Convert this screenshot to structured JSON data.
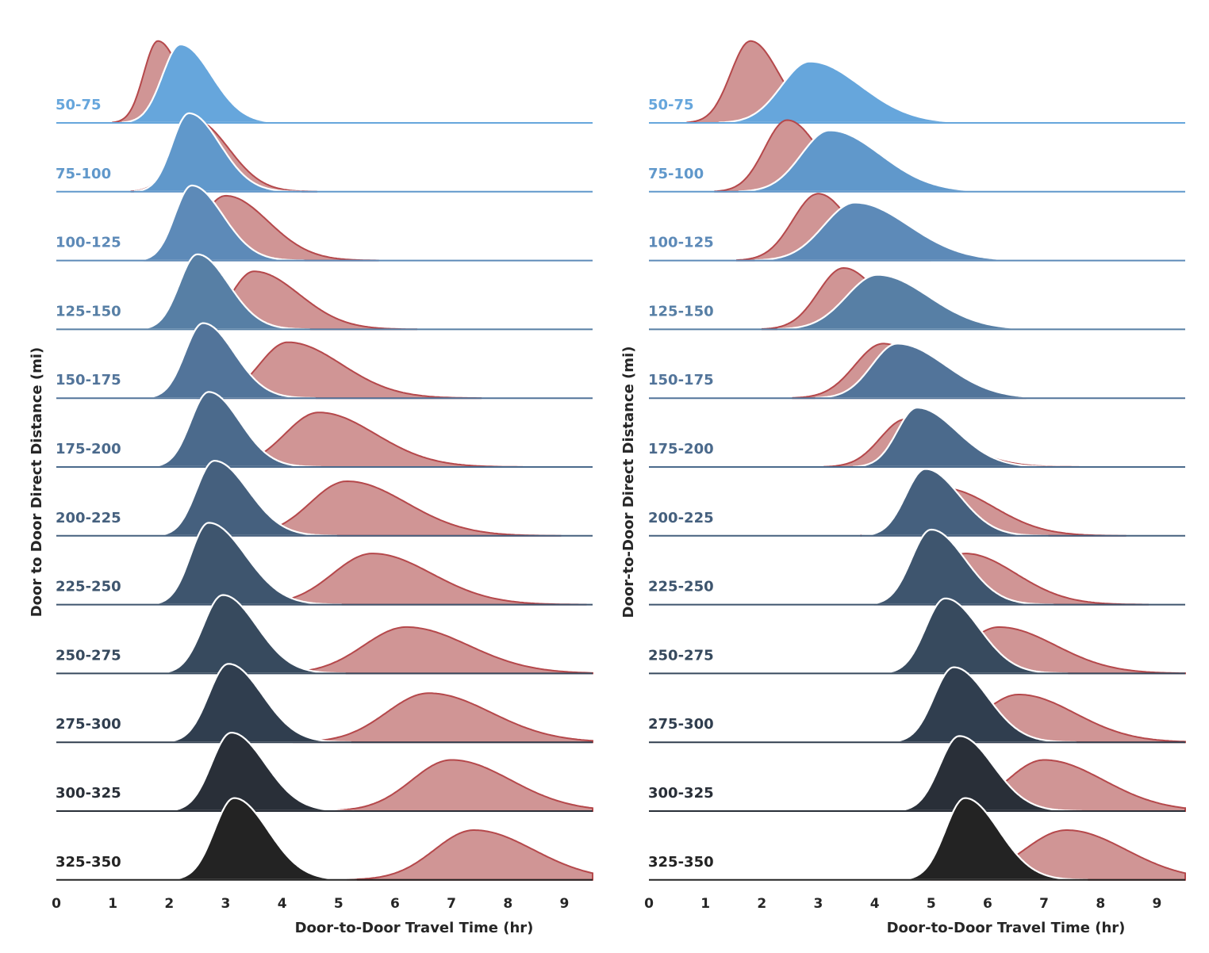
{
  "chart_data": [
    {
      "type": "ridgeline",
      "xlabel": "Door-to-Door Travel Time (hr)",
      "ylabel": "Door to Door Direct Distance (mi)",
      "xlim": [
        0,
        9.5
      ],
      "xticks": [
        "0",
        "1",
        "2",
        "3",
        "4",
        "5",
        "6",
        "7",
        "8",
        "9"
      ],
      "rows": [
        {
          "label": "50-75",
          "blue": {
            "peak": 2.2,
            "left": 0.32,
            "right": 0.55,
            "h": 1.15
          },
          "red": {
            "peak": 1.8,
            "left": 0.25,
            "right": 0.4,
            "h": 1.2
          }
        },
        {
          "label": "75-100",
          "blue": {
            "peak": 2.35,
            "left": 0.3,
            "right": 0.55,
            "h": 1.15
          },
          "red": {
            "peak": 2.45,
            "left": 0.35,
            "right": 0.6,
            "h": 1.05
          }
        },
        {
          "label": "100-125",
          "blue": {
            "peak": 2.4,
            "left": 0.3,
            "right": 0.55,
            "h": 1.1
          },
          "red": {
            "peak": 3.0,
            "left": 0.45,
            "right": 0.75,
            "h": 0.95
          }
        },
        {
          "label": "125-150",
          "blue": {
            "peak": 2.5,
            "left": 0.32,
            "right": 0.55,
            "h": 1.1
          },
          "red": {
            "peak": 3.5,
            "left": 0.4,
            "right": 0.8,
            "h": 0.85
          }
        },
        {
          "label": "150-175",
          "blue": {
            "peak": 2.6,
            "left": 0.32,
            "right": 0.55,
            "h": 1.1
          },
          "red": {
            "peak": 4.1,
            "left": 0.5,
            "right": 0.95,
            "h": 0.82
          }
        },
        {
          "label": "175-200",
          "blue": {
            "peak": 2.7,
            "left": 0.32,
            "right": 0.55,
            "h": 1.1
          },
          "red": {
            "peak": 4.65,
            "left": 0.6,
            "right": 1.0,
            "h": 0.8
          }
        },
        {
          "label": "200-225",
          "blue": {
            "peak": 2.8,
            "left": 0.32,
            "right": 0.6,
            "h": 1.1
          },
          "red": {
            "peak": 5.15,
            "left": 0.65,
            "right": 1.05,
            "h": 0.8
          }
        },
        {
          "label": "225-250",
          "blue": {
            "peak": 2.7,
            "left": 0.32,
            "right": 0.65,
            "h": 1.2
          },
          "red": {
            "peak": 5.6,
            "left": 0.7,
            "right": 1.05,
            "h": 0.75
          }
        },
        {
          "label": "250-275",
          "blue": {
            "peak": 2.95,
            "left": 0.35,
            "right": 0.6,
            "h": 1.15
          },
          "red": {
            "peak": 6.2,
            "left": 0.75,
            "right": 1.1,
            "h": 0.68
          }
        },
        {
          "label": "275-300",
          "blue": {
            "peak": 3.05,
            "left": 0.35,
            "right": 0.6,
            "h": 1.15
          },
          "red": {
            "peak": 6.6,
            "left": 0.75,
            "right": 1.1,
            "h": 0.72
          }
        },
        {
          "label": "300-325",
          "blue": {
            "peak": 3.1,
            "left": 0.35,
            "right": 0.6,
            "h": 1.15
          },
          "red": {
            "peak": 7.0,
            "left": 0.7,
            "right": 1.05,
            "h": 0.75
          }
        },
        {
          "label": "325-350",
          "blue": {
            "peak": 3.15,
            "left": 0.35,
            "right": 0.6,
            "h": 1.2
          },
          "red": {
            "peak": 7.4,
            "left": 0.7,
            "right": 1.05,
            "h": 0.73
          }
        }
      ]
    },
    {
      "type": "ridgeline",
      "xlabel": "Door-to-Door Travel Time (hr)",
      "ylabel": "Door-to-Door Direct Distance (mi)",
      "xlim": [
        0,
        9.5
      ],
      "xticks": [
        "0",
        "1",
        "2",
        "3",
        "4",
        "5",
        "6",
        "7",
        "8",
        "9"
      ],
      "rows": [
        {
          "label": "50-75",
          "blue": {
            "peak": 2.85,
            "left": 0.5,
            "right": 0.9,
            "h": 0.9
          },
          "red": {
            "peak": 1.8,
            "left": 0.35,
            "right": 0.5,
            "h": 1.2
          }
        },
        {
          "label": "75-100",
          "blue": {
            "peak": 3.2,
            "left": 0.5,
            "right": 0.9,
            "h": 0.9
          },
          "red": {
            "peak": 2.45,
            "left": 0.4,
            "right": 0.55,
            "h": 1.05
          }
        },
        {
          "label": "100-125",
          "blue": {
            "peak": 3.65,
            "left": 0.55,
            "right": 0.95,
            "h": 0.85
          },
          "red": {
            "peak": 3.0,
            "left": 0.45,
            "right": 0.55,
            "h": 0.98
          }
        },
        {
          "label": "125-150",
          "blue": {
            "peak": 4.05,
            "left": 0.55,
            "right": 0.9,
            "h": 0.8
          },
          "red": {
            "peak": 3.45,
            "left": 0.45,
            "right": 0.6,
            "h": 0.9
          }
        },
        {
          "label": "150-175",
          "blue": {
            "peak": 4.4,
            "left": 0.45,
            "right": 0.85,
            "h": 0.8
          },
          "red": {
            "peak": 4.15,
            "left": 0.5,
            "right": 0.7,
            "h": 0.8
          }
        },
        {
          "label": "175-200",
          "blue": {
            "peak": 4.75,
            "left": 0.35,
            "right": 0.7,
            "h": 0.87
          },
          "red": {
            "peak": 4.55,
            "left": 0.45,
            "right": 0.85,
            "h": 0.7
          }
        },
        {
          "label": "200-225",
          "blue": {
            "peak": 4.9,
            "left": 0.35,
            "right": 0.6,
            "h": 0.98
          },
          "red": {
            "peak": 5.2,
            "left": 0.45,
            "right": 0.9,
            "h": 0.7
          }
        },
        {
          "label": "225-250",
          "blue": {
            "peak": 5.0,
            "left": 0.35,
            "right": 0.6,
            "h": 1.1
          },
          "red": {
            "peak": 5.6,
            "left": 0.5,
            "right": 0.9,
            "h": 0.75
          }
        },
        {
          "label": "250-275",
          "blue": {
            "peak": 5.25,
            "left": 0.35,
            "right": 0.6,
            "h": 1.1
          },
          "red": {
            "peak": 6.2,
            "left": 0.6,
            "right": 1.0,
            "h": 0.68
          }
        },
        {
          "label": "275-300",
          "blue": {
            "peak": 5.4,
            "left": 0.35,
            "right": 0.6,
            "h": 1.1
          },
          "red": {
            "peak": 6.55,
            "left": 0.65,
            "right": 1.0,
            "h": 0.7
          }
        },
        {
          "label": "300-325",
          "blue": {
            "peak": 5.5,
            "left": 0.35,
            "right": 0.6,
            "h": 1.1
          },
          "red": {
            "peak": 7.0,
            "left": 0.65,
            "right": 1.05,
            "h": 0.75
          }
        },
        {
          "label": "325-350",
          "blue": {
            "peak": 5.6,
            "left": 0.35,
            "right": 0.6,
            "h": 1.2
          },
          "red": {
            "peak": 7.4,
            "left": 0.75,
            "right": 1.05,
            "h": 0.73
          }
        }
      ]
    }
  ],
  "colors": {
    "red_fill": "#d09595",
    "red_line": "#b5484b",
    "row_colors": [
      "#66a6dc",
      "#6098cb",
      "#5d8ab8",
      "#577fa5",
      "#52749a",
      "#4b6a8c",
      "#45607e",
      "#3e556e",
      "#374a5e",
      "#303e4f",
      "#292f38",
      "#232323"
    ]
  }
}
